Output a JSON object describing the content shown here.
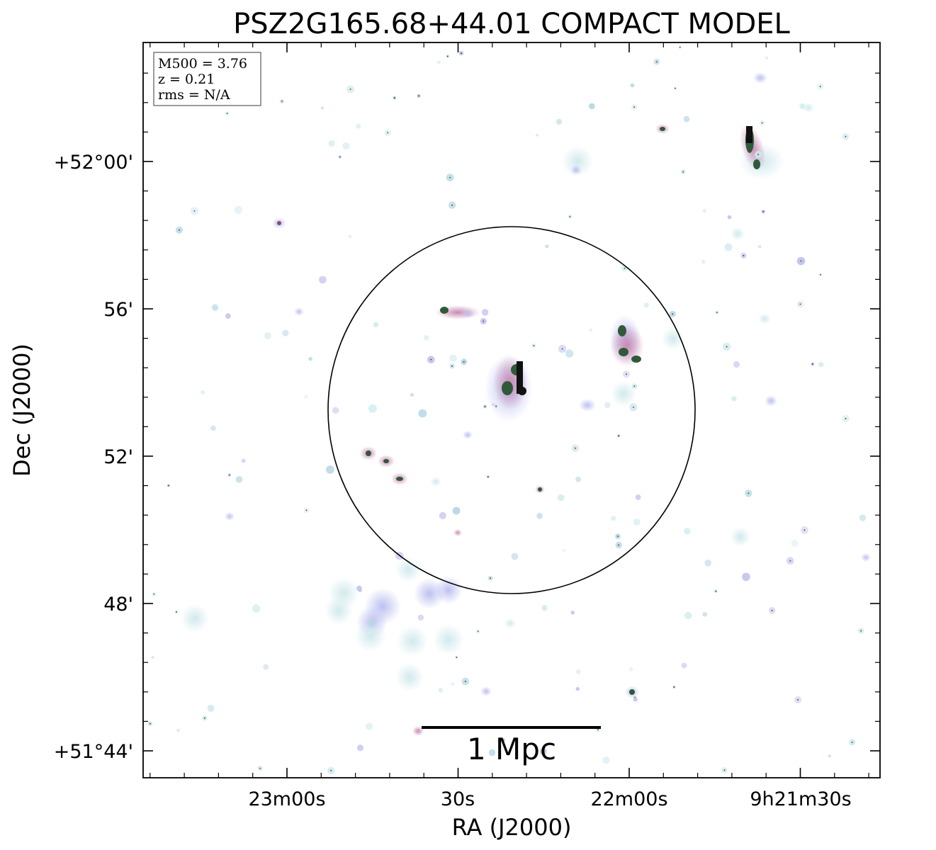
{
  "chart_data": {
    "type": "image",
    "title": "PSZ2G165.68+44.01 COMPACT MODEL",
    "xlabel": "RA (J2000)",
    "ylabel": "Dec (J2000)",
    "x_ticks": [
      "23m00s",
      "30s",
      "22m00s",
      "9h21m30s"
    ],
    "y_ticks": [
      "+52°00'",
      "56'",
      "52'",
      "48'",
      "+51°44'"
    ],
    "info_box": [
      "M500 = 3.76",
      "z = 0.21",
      "rms = N/A"
    ],
    "scale_bar_label": "1 Mpc",
    "colors": {
      "halo": "#cfe8ec",
      "halo_purple": "#b9bdef",
      "source": "#c98bb4",
      "core": "#2f5a3a"
    },
    "sources": [
      {
        "name": "north-right-tail",
        "shape": "tail"
      },
      {
        "name": "central-source",
        "shape": "tail"
      },
      {
        "name": "right-pair",
        "shape": "tail"
      },
      {
        "name": "upper-left-pair",
        "shape": "tail"
      },
      {
        "name": "left-chain",
        "shape": "tail"
      }
    ]
  }
}
